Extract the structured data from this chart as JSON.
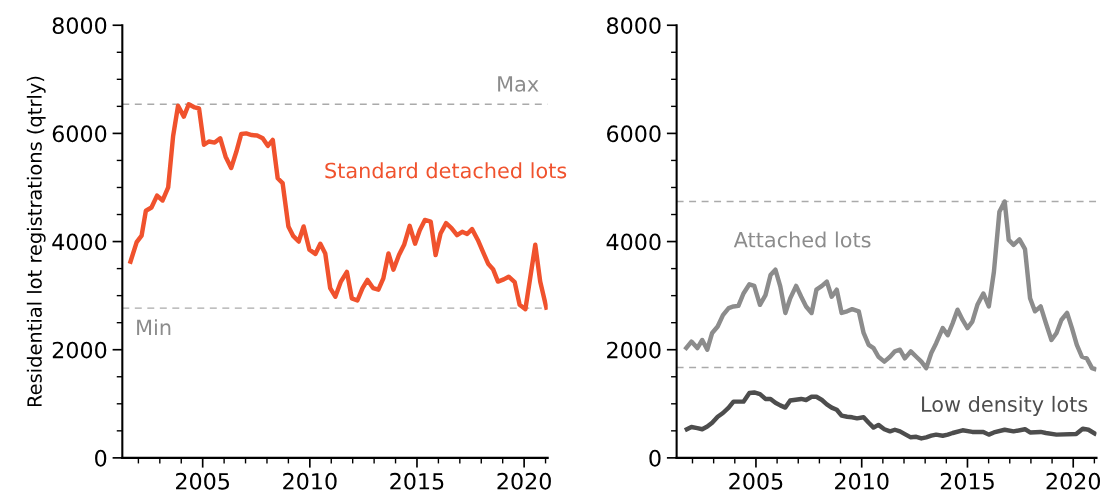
{
  "chart_data": [
    {
      "type": "line",
      "ylabel": "Residential lot registrations (qtrly)",
      "xlim": [
        2001.25,
        2021.1
      ],
      "xticks": [
        2005,
        2010,
        2015,
        2020
      ],
      "ylim": [
        0,
        8000
      ],
      "yticks": [
        0,
        2000,
        4000,
        6000,
        8000
      ],
      "grid": false,
      "legend": false,
      "line_style": "solid",
      "marker": "none",
      "series": [
        {
          "name": "Standard detached lots",
          "color": "#f0522d",
          "x": [
            2001.6,
            2001.92,
            2002.15,
            2002.35,
            2002.61,
            2002.87,
            2003.13,
            2003.39,
            2003.62,
            2003.85,
            2004.12,
            2004.35,
            2004.63,
            2004.83,
            2005.06,
            2005.29,
            2005.56,
            2005.82,
            2006.07,
            2006.33,
            2006.57,
            2006.8,
            2007.03,
            2007.29,
            2007.54,
            2007.8,
            2008.04,
            2008.27,
            2008.5,
            2008.73,
            2009.0,
            2009.23,
            2009.48,
            2009.71,
            2009.98,
            2010.26,
            2010.49,
            2010.72,
            2010.95,
            2011.19,
            2011.45,
            2011.73,
            2011.96,
            2012.22,
            2012.46,
            2012.69,
            2012.95,
            2013.2,
            2013.43,
            2013.67,
            2013.9,
            2014.16,
            2014.4,
            2014.66,
            2014.91,
            2015.13,
            2015.37,
            2015.64,
            2015.87,
            2016.1,
            2016.36,
            2016.61,
            2016.87,
            2017.11,
            2017.34,
            2017.57,
            2017.84,
            2018.08,
            2018.32,
            2018.55,
            2018.78,
            2019.05,
            2019.28,
            2019.56,
            2019.79,
            2020.06,
            2020.52,
            2020.75,
            2021.06
          ],
          "values": [
            3590,
            3990,
            4110,
            4570,
            4630,
            4850,
            4760,
            5000,
            5950,
            6510,
            6310,
            6540,
            6480,
            6460,
            5790,
            5850,
            5830,
            5910,
            5570,
            5360,
            5660,
            5990,
            6000,
            5970,
            5960,
            5910,
            5770,
            5880,
            5170,
            5080,
            4280,
            4100,
            4000,
            4280,
            3850,
            3770,
            3960,
            3780,
            3140,
            2980,
            3260,
            3440,
            2950,
            2910,
            3140,
            3290,
            3140,
            3110,
            3320,
            3780,
            3480,
            3750,
            3940,
            4290,
            3960,
            4210,
            4400,
            4370,
            3750,
            4150,
            4340,
            4250,
            4120,
            4180,
            4140,
            4230,
            4030,
            3810,
            3590,
            3490,
            3260,
            3300,
            3350,
            3250,
            2830,
            2750,
            3940,
            3260,
            2740
          ]
        }
      ],
      "ref_lines": [
        {
          "axis": "y",
          "value": 6540,
          "label": "Max",
          "color": "#aaaaaa",
          "line_style": "dashed"
        },
        {
          "axis": "y",
          "value": 2770,
          "label": "Min",
          "color": "#aaaaaa",
          "line_style": "dashed"
        }
      ]
    },
    {
      "type": "line",
      "xlim": [
        2001.25,
        2021.1
      ],
      "xticks": [
        2005,
        2010,
        2015,
        2020
      ],
      "ylim": [
        0,
        8000
      ],
      "yticks": [
        0,
        2000,
        4000,
        6000,
        8000
      ],
      "grid": false,
      "legend": false,
      "line_style": "solid",
      "marker": "none",
      "series": [
        {
          "name": "Attached lots",
          "color": "#8c8c8c",
          "x": [
            2001.64,
            2001.95,
            2002.23,
            2002.46,
            2002.7,
            2002.93,
            2003.19,
            2003.44,
            2003.71,
            2003.94,
            2004.17,
            2004.41,
            2004.69,
            2004.92,
            2005.19,
            2005.45,
            2005.69,
            2005.92,
            2006.15,
            2006.39,
            2006.62,
            2006.9,
            2007.14,
            2007.37,
            2007.63,
            2007.86,
            2008.12,
            2008.35,
            2008.58,
            2008.82,
            2009.05,
            2009.31,
            2009.55,
            2009.86,
            2010.09,
            2010.33,
            2010.56,
            2010.79,
            2011.07,
            2011.34,
            2011.57,
            2011.81,
            2012.04,
            2012.32,
            2012.58,
            2012.82,
            2013.05,
            2013.29,
            2013.52,
            2013.83,
            2014.07,
            2014.3,
            2014.53,
            2014.77,
            2015.0,
            2015.23,
            2015.47,
            2015.75,
            2016.01,
            2016.25,
            2016.51,
            2016.76,
            2016.95,
            2017.18,
            2017.46,
            2017.72,
            2017.96,
            2018.19,
            2018.46,
            2018.71,
            2018.97,
            2019.21,
            2019.44,
            2019.71,
            2019.94,
            2020.17,
            2020.41,
            2020.64,
            2020.89,
            2021.1
          ],
          "values": [
            2000,
            2150,
            2030,
            2180,
            2000,
            2310,
            2430,
            2640,
            2770,
            2800,
            2810,
            3040,
            3210,
            3180,
            2830,
            3010,
            3380,
            3480,
            3170,
            2680,
            2950,
            3180,
            2980,
            2800,
            2680,
            3110,
            3180,
            3260,
            2980,
            3110,
            2680,
            2710,
            2750,
            2710,
            2310,
            2090,
            2030,
            1870,
            1780,
            1870,
            1970,
            2000,
            1840,
            1970,
            1870,
            1780,
            1660,
            1940,
            2120,
            2400,
            2270,
            2490,
            2740,
            2550,
            2400,
            2520,
            2830,
            3040,
            2800,
            3440,
            4550,
            4740,
            4030,
            3940,
            4040,
            3860,
            2950,
            2710,
            2800,
            2490,
            2180,
            2310,
            2550,
            2680,
            2400,
            2090,
            1870,
            1840,
            1660,
            1630
          ]
        },
        {
          "name": "Low density lots",
          "color": "#4d4d4d",
          "x": [
            2001.64,
            2001.95,
            2002.23,
            2002.46,
            2002.7,
            2002.93,
            2003.19,
            2003.44,
            2003.71,
            2003.94,
            2004.41,
            2004.69,
            2004.92,
            2005.19,
            2005.45,
            2005.69,
            2005.92,
            2006.15,
            2006.39,
            2006.62,
            2007.14,
            2007.37,
            2007.63,
            2007.86,
            2008.12,
            2008.35,
            2008.58,
            2008.82,
            2009.05,
            2009.31,
            2009.55,
            2009.78,
            2010.09,
            2010.33,
            2010.56,
            2010.79,
            2011.07,
            2011.34,
            2011.57,
            2011.81,
            2012.04,
            2012.32,
            2012.58,
            2012.82,
            2013.05,
            2013.29,
            2013.52,
            2013.83,
            2014.07,
            2014.3,
            2014.77,
            2015.23,
            2015.75,
            2016.01,
            2016.25,
            2016.76,
            2017.18,
            2017.72,
            2017.96,
            2018.46,
            2018.71,
            2019.21,
            2020.14,
            2020.45,
            2020.72,
            2021.1
          ],
          "values": [
            510,
            570,
            550,
            530,
            580,
            650,
            760,
            830,
            930,
            1040,
            1040,
            1200,
            1210,
            1180,
            1090,
            1090,
            1020,
            970,
            930,
            1060,
            1090,
            1070,
            1130,
            1130,
            1070,
            990,
            930,
            890,
            780,
            760,
            750,
            730,
            750,
            650,
            560,
            610,
            530,
            490,
            520,
            490,
            440,
            380,
            390,
            360,
            380,
            410,
            430,
            410,
            430,
            460,
            510,
            480,
            480,
            430,
            470,
            520,
            490,
            530,
            470,
            480,
            460,
            430,
            440,
            540,
            520,
            430
          ]
        }
      ],
      "ref_lines": [
        {
          "axis": "y",
          "value": 4740,
          "color": "#aaaaaa",
          "line_style": "dashed"
        },
        {
          "axis": "y",
          "value": 1670,
          "color": "#aaaaaa",
          "line_style": "dashed"
        }
      ]
    }
  ]
}
